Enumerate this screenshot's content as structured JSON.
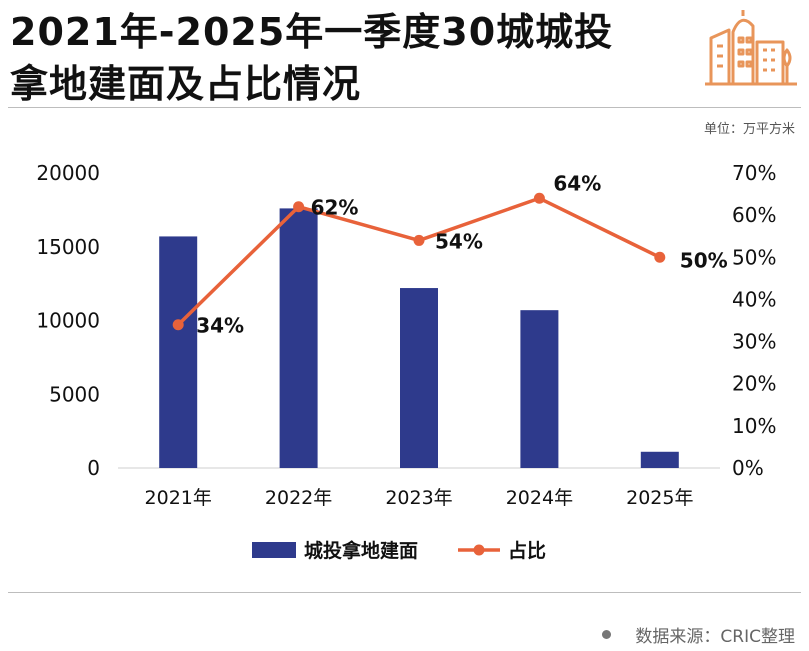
{
  "header": {
    "title_line1": "2021年-2025年一季度30城城投",
    "title_line2": "拿地建面及占比情况",
    "logo_icon": "buildings-icon"
  },
  "unit_label": "单位：万平方米",
  "source_label": "数据来源：CRIC整理",
  "colors": {
    "bar": "#2e3a8c",
    "line": "#e8623a",
    "logo": "#e8955a"
  },
  "chart_data": {
    "type": "bar",
    "categories": [
      "2021年",
      "2022年",
      "2023年",
      "2024年",
      "2025年"
    ],
    "series": [
      {
        "name": "城投拿地建面",
        "type": "bar",
        "axis": "left",
        "values": [
          15700,
          17600,
          12200,
          10700,
          1100
        ]
      },
      {
        "name": "占比",
        "type": "line",
        "axis": "right",
        "values": [
          34,
          62,
          54,
          64,
          50
        ],
        "labels": [
          "34%",
          "62%",
          "54%",
          "64%",
          "50%"
        ]
      }
    ],
    "y_left": {
      "ticks": [
        0,
        5000,
        10000,
        15000,
        20000
      ],
      "tick_labels": [
        "0",
        "5000",
        "10000",
        "15000",
        "20000"
      ],
      "range": [
        0,
        20000
      ]
    },
    "y_right": {
      "ticks": [
        0,
        10,
        20,
        30,
        40,
        50,
        60,
        70
      ],
      "tick_labels": [
        "0%",
        "10%",
        "20%",
        "30%",
        "40%",
        "50%",
        "60%",
        "70%"
      ],
      "range": [
        0,
        70
      ]
    },
    "legend_position": "bottom",
    "grid": false
  }
}
